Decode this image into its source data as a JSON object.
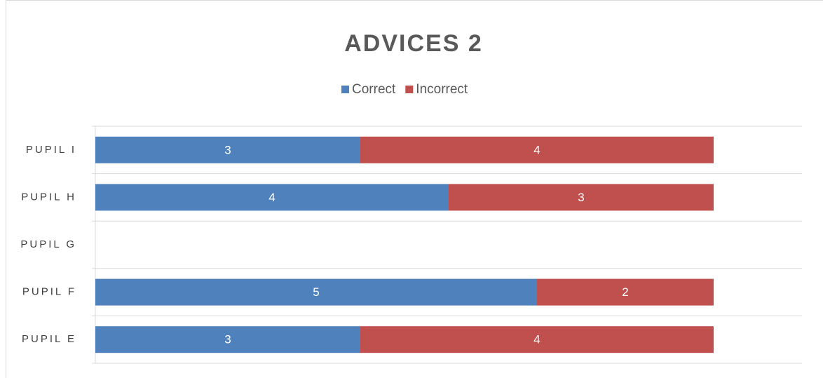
{
  "chart_data": {
    "type": "bar",
    "orientation": "horizontal",
    "stacked": true,
    "title": "ADVICES 2",
    "categories": [
      "PUPIL I",
      "PUPIL H",
      "PUPIL G",
      "PUPIL F",
      "PUPIL E"
    ],
    "series": [
      {
        "name": "Correct",
        "color": "#4f81bd",
        "values": [
          3,
          4,
          null,
          5,
          3
        ]
      },
      {
        "name": "Incorrect",
        "color": "#c0504d",
        "values": [
          4,
          3,
          null,
          2,
          4
        ]
      }
    ],
    "xlim": [
      0,
      8
    ],
    "legend": "top",
    "grid": true
  }
}
